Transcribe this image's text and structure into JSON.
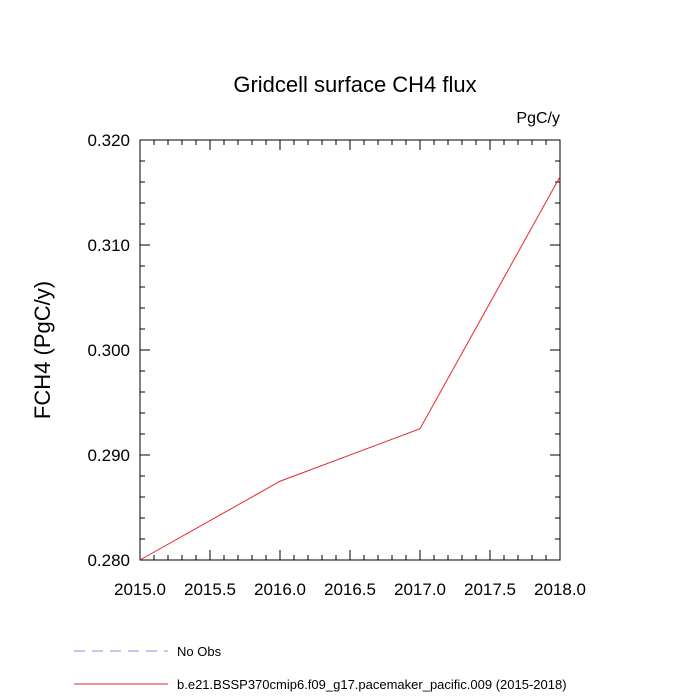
{
  "chart_data": {
    "type": "line",
    "title": "Gridcell surface CH4 flux",
    "units_label": "PgC/y",
    "xlabel": "",
    "ylabel": "FCH4  (PgC/y)",
    "xlim": [
      2015.0,
      2018.0
    ],
    "ylim": [
      0.28,
      0.32
    ],
    "x_ticks": [
      "2015.0",
      "2015.5",
      "2016.0",
      "2016.5",
      "2017.0",
      "2017.5",
      "2018.0"
    ],
    "y_ticks": [
      "0.280",
      "0.290",
      "0.300",
      "0.310",
      "0.320"
    ],
    "grid": false,
    "legend_position": "bottom",
    "series": [
      {
        "name": "b.e21.BSSP370cmip6.f09_g17.pacemaker_pacific.009 (2015-2018)",
        "color": "#e8262b",
        "dash": "solid",
        "x": [
          2015.0,
          2016.0,
          2017.0,
          2018.0
        ],
        "y": [
          0.28,
          0.2875,
          0.2925,
          0.3165
        ]
      }
    ],
    "legend": [
      {
        "label": "No Obs",
        "color": "#8c8cf0",
        "dash": "dashed"
      },
      {
        "label": "b.e21.BSSP370cmip6.f09_g17.pacemaker_pacific.009 (2015-2018)",
        "color": "#e8262b",
        "dash": "solid"
      }
    ]
  }
}
